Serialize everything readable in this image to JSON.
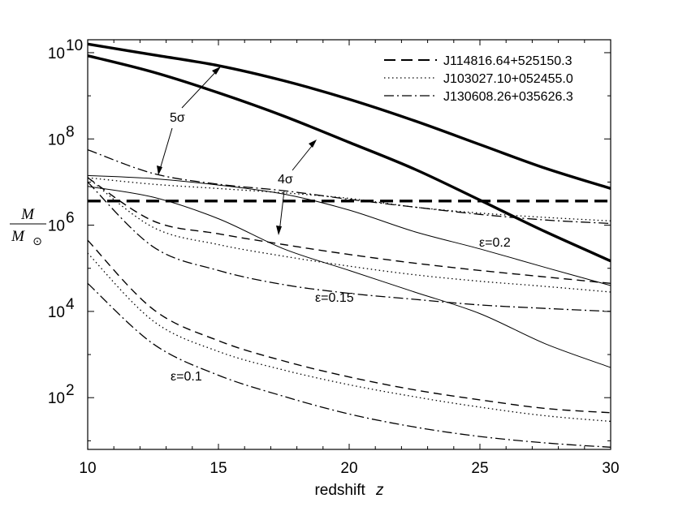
{
  "chart_data": {
    "type": "line",
    "xlabel": "redshift",
    "xlabel_symbol": "z",
    "ylabel_num": "M",
    "ylabel_den": "M",
    "ylabel_den_sub": "⊙",
    "xlim": [
      10,
      30
    ],
    "ylim_log10": [
      0.8,
      10.3
    ],
    "log_y": true,
    "grid": false,
    "legend_position": "top-right",
    "x_ticks": [
      10,
      15,
      20,
      25,
      30
    ],
    "x_tick_labels": [
      "10",
      "15",
      "20",
      "25",
      "30"
    ],
    "y_ticks": [
      {
        "base": "10",
        "exp": "2",
        "log10": 2
      },
      {
        "base": "10",
        "exp": "4",
        "log10": 4
      },
      {
        "base": "10",
        "exp": "6",
        "log10": 6
      },
      {
        "base": "10",
        "exp": "8",
        "log10": 8
      },
      {
        "base": "10",
        "exp": "10",
        "log10": 10
      }
    ],
    "legend": [
      {
        "label": "J114816.64+525150.3",
        "style": "dashed"
      },
      {
        "label": "J103027.10+052455.0",
        "style": "dotted"
      },
      {
        "label": "J130608.26+035626.3",
        "style": "dashdot"
      }
    ],
    "annotations": {
      "five_sigma": "5σ",
      "four_sigma": "4σ",
      "eps_02": "ε=0.2",
      "eps_015": "ε=0.15",
      "eps_01": "ε=0.1"
    },
    "series": [
      {
        "style": "thick",
        "x": [
          10,
          12.5,
          15,
          17.5,
          20,
          22.5,
          25,
          27.5,
          30
        ],
        "log10_y": [
          10.2,
          9.95,
          9.7,
          9.35,
          8.92,
          8.42,
          7.87,
          7.32,
          6.85
        ]
      },
      {
        "style": "thick",
        "x": [
          10,
          12.5,
          15,
          17.5,
          20,
          22.5,
          25,
          27.5,
          30
        ],
        "log10_y": [
          9.93,
          9.55,
          9.07,
          8.53,
          7.92,
          7.3,
          6.58,
          5.85,
          5.17
        ]
      },
      {
        "style": "thickdash",
        "x": [
          10,
          30
        ],
        "log10_y": [
          6.56,
          6.56
        ]
      },
      {
        "style": "thin",
        "x": [
          10,
          12.5,
          15,
          17.5,
          20,
          22.5,
          25,
          27.5,
          30
        ],
        "log10_y": [
          7.15,
          7.08,
          6.93,
          6.72,
          6.35,
          5.85,
          5.45,
          5.02,
          4.6
        ]
      },
      {
        "style": "thin",
        "x": [
          10,
          12.5,
          15,
          17.5,
          20,
          22.5,
          25,
          27.5,
          30
        ],
        "log10_y": [
          6.9,
          6.65,
          6.15,
          5.45,
          4.95,
          4.45,
          3.95,
          3.25,
          2.7
        ]
      },
      {
        "style": "dashdot",
        "x": [
          10,
          12.5,
          15,
          17.5,
          20,
          22.5,
          25,
          27.5,
          30
        ],
        "log10_y": [
          7.75,
          7.2,
          6.95,
          6.8,
          6.6,
          6.42,
          6.25,
          6.12,
          6.04
        ]
      },
      {
        "style": "dotted",
        "x": [
          10,
          12.5,
          15,
          17.5,
          20,
          22.5,
          25,
          27.5,
          30
        ],
        "log10_y": [
          7.1,
          6.95,
          6.85,
          6.75,
          6.62,
          6.42,
          6.28,
          6.18,
          6.1
        ]
      },
      {
        "style": "dashed",
        "x": [
          10,
          12.5,
          15,
          17.5,
          20,
          22.5,
          25,
          27.5,
          30
        ],
        "log10_y": [
          7.1,
          6.1,
          5.8,
          5.55,
          5.32,
          5.12,
          4.95,
          4.8,
          4.65
        ]
      },
      {
        "style": "dotted",
        "x": [
          10,
          12.5,
          15,
          17.5,
          20,
          22.5,
          25,
          27.5,
          30
        ],
        "log10_y": [
          7.1,
          5.95,
          5.55,
          5.28,
          5.05,
          4.85,
          4.7,
          4.58,
          4.45
        ]
      },
      {
        "style": "dashdot",
        "x": [
          10,
          12.5,
          15,
          17.5,
          20,
          22.5,
          25,
          27.5,
          30
        ],
        "log10_y": [
          7.0,
          5.5,
          4.95,
          4.62,
          4.42,
          4.28,
          4.15,
          4.07,
          4.0
        ]
      },
      {
        "style": "dashed",
        "x": [
          10,
          12.5,
          15,
          17.5,
          20,
          22.5,
          25,
          27.5,
          30
        ],
        "log10_y": [
          5.65,
          4.05,
          3.32,
          2.85,
          2.48,
          2.18,
          1.95,
          1.75,
          1.65
        ]
      },
      {
        "style": "dotted",
        "x": [
          10,
          12.5,
          15,
          17.5,
          20,
          22.5,
          25,
          27.5,
          30
        ],
        "log10_y": [
          5.35,
          3.78,
          3.07,
          2.64,
          2.3,
          2.02,
          1.78,
          1.58,
          1.45
        ]
      },
      {
        "style": "dashdot",
        "x": [
          10,
          12.5,
          15,
          17.5,
          20,
          22.5,
          25,
          27.5,
          30
        ],
        "log10_y": [
          4.65,
          3.25,
          2.52,
          2.03,
          1.62,
          1.32,
          1.1,
          0.95,
          0.85
        ]
      }
    ]
  }
}
